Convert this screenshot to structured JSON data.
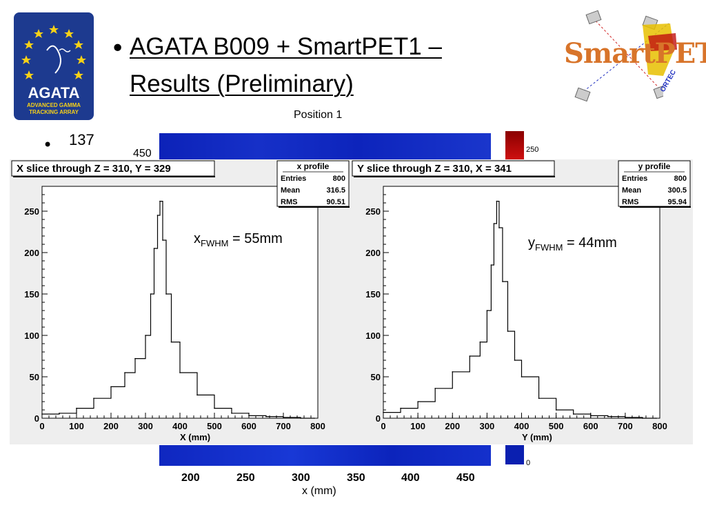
{
  "title": {
    "bullet": "•",
    "line1": "AGATA B009 + SmartPET1 –",
    "line2": "Results (Preliminary)"
  },
  "logos": {
    "agata": {
      "name": "AGATA",
      "subtitle_line1": "ADVANCED GAMMA",
      "subtitle_line2": "TRACKING ARRAY"
    },
    "smartpet": {
      "name": "SmartPET",
      "sub": "ORTEC"
    }
  },
  "bullet2": {
    "bullet": "•",
    "text": "137"
  },
  "background_plot": {
    "caption": "Position 1",
    "y_tick": "450",
    "colorbar_top": "250",
    "colorbar_bottom": "0",
    "x_ticks": [
      "200",
      "250",
      "300",
      "350",
      "400",
      "450"
    ],
    "xlabel": "x (mm)"
  },
  "left_panel": {
    "fwhm_main": "x",
    "fwhm_sub": "FWHM",
    "fwhm_value": " = 55mm"
  },
  "right_panel": {
    "fwhm_main": "y",
    "fwhm_sub": "FWHM",
    "fwhm_value": " = 44mm"
  },
  "colors": {
    "line": "#000000",
    "panel": "#eeeeee",
    "heat_blue": "#1430c8",
    "heat_red": "#c01010"
  },
  "chart_data": [
    {
      "type": "line",
      "title": "X slice through Z = 310, Y = 329",
      "stats": {
        "title": "x profile",
        "Entries": "800",
        "Mean": "316.5",
        "RMS": "90.51"
      },
      "xlabel": "X (mm)",
      "ylabel": "",
      "xlim": [
        0,
        800
      ],
      "ylim": [
        0,
        280
      ],
      "x_ticks": [
        0,
        100,
        200,
        300,
        400,
        500,
        600,
        700,
        800
      ],
      "y_ticks": [
        0,
        50,
        100,
        150,
        200,
        250
      ],
      "x": [
        0,
        50,
        100,
        150,
        200,
        240,
        270,
        300,
        315,
        325,
        335,
        342,
        350,
        360,
        375,
        400,
        450,
        500,
        550,
        600,
        650,
        700,
        750,
        790
      ],
      "values": [
        5,
        6,
        12,
        24,
        38,
        55,
        72,
        100,
        150,
        205,
        245,
        262,
        215,
        150,
        92,
        55,
        28,
        12,
        6,
        3,
        2,
        1,
        0,
        0
      ]
    },
    {
      "type": "line",
      "title": "Y slice through Z = 310, X = 341",
      "stats": {
        "title": "y profile",
        "Entries": "800",
        "Mean": "300.5",
        "RMS": "95.94"
      },
      "xlabel": "Y (mm)",
      "ylabel": "",
      "xlim": [
        0,
        800
      ],
      "ylim": [
        0,
        280
      ],
      "x_ticks": [
        0,
        100,
        200,
        300,
        400,
        500,
        600,
        700,
        800
      ],
      "y_ticks": [
        0,
        50,
        100,
        150,
        200,
        250
      ],
      "x": [
        0,
        50,
        100,
        150,
        200,
        250,
        280,
        300,
        312,
        320,
        328,
        335,
        345,
        360,
        380,
        400,
        450,
        500,
        550,
        600,
        650,
        700,
        750,
        790
      ],
      "values": [
        7,
        12,
        20,
        36,
        56,
        75,
        92,
        130,
        185,
        235,
        262,
        230,
        165,
        105,
        70,
        50,
        24,
        10,
        5,
        3,
        2,
        1,
        0,
        0
      ]
    }
  ]
}
